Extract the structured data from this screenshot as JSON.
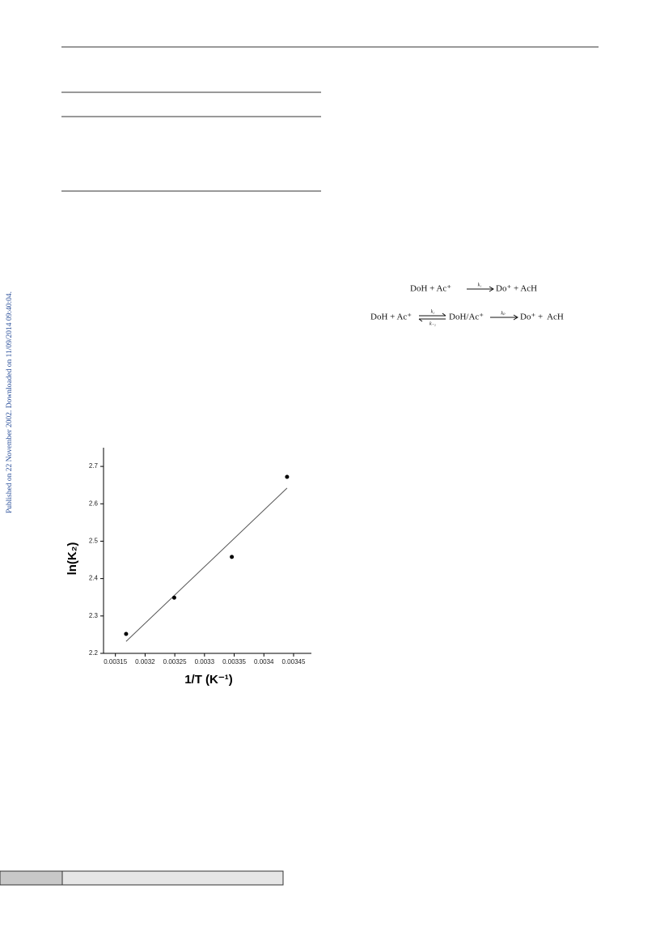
{
  "side_note": "Published on 22 November 2002. Downloaded on 11/09/2014 09:40:04.",
  "equations": [
    {
      "left": "DoH + Ac⁺",
      "rate": "k₁",
      "right": "Do⁺ + AcH"
    },
    {
      "left": "DoH + Ac⁺",
      "forward": "k₂",
      "backward": "k₋₂",
      "middle": "DoH/Ac⁺",
      "rate": "kₚ",
      "right": "Do⁺ +  AcH"
    }
  ],
  "chart_data": {
    "type": "scatter",
    "xlabel": "1/T (K⁻¹)",
    "ylabel": "ln(K₂)",
    "series": [
      {
        "color": "#000000",
        "x": [
          0.003168,
          0.003249,
          0.003346,
          0.003439
        ],
        "values": [
          2.252,
          2.349,
          2.458,
          2.672
        ]
      }
    ],
    "fit": {
      "color": "#555555",
      "x": [
        0.003168,
        0.003439
      ],
      "values": [
        2.232,
        2.642
      ]
    },
    "xlim": [
      0.00313,
      0.00348
    ],
    "ylim": [
      2.2,
      2.75
    ],
    "xticks": [
      0.00315,
      0.0032,
      0.00325,
      0.0033,
      0.00335,
      0.0034,
      0.00345
    ],
    "yticks": [
      2.2,
      2.3,
      2.4,
      2.5,
      2.6,
      2.7
    ]
  }
}
